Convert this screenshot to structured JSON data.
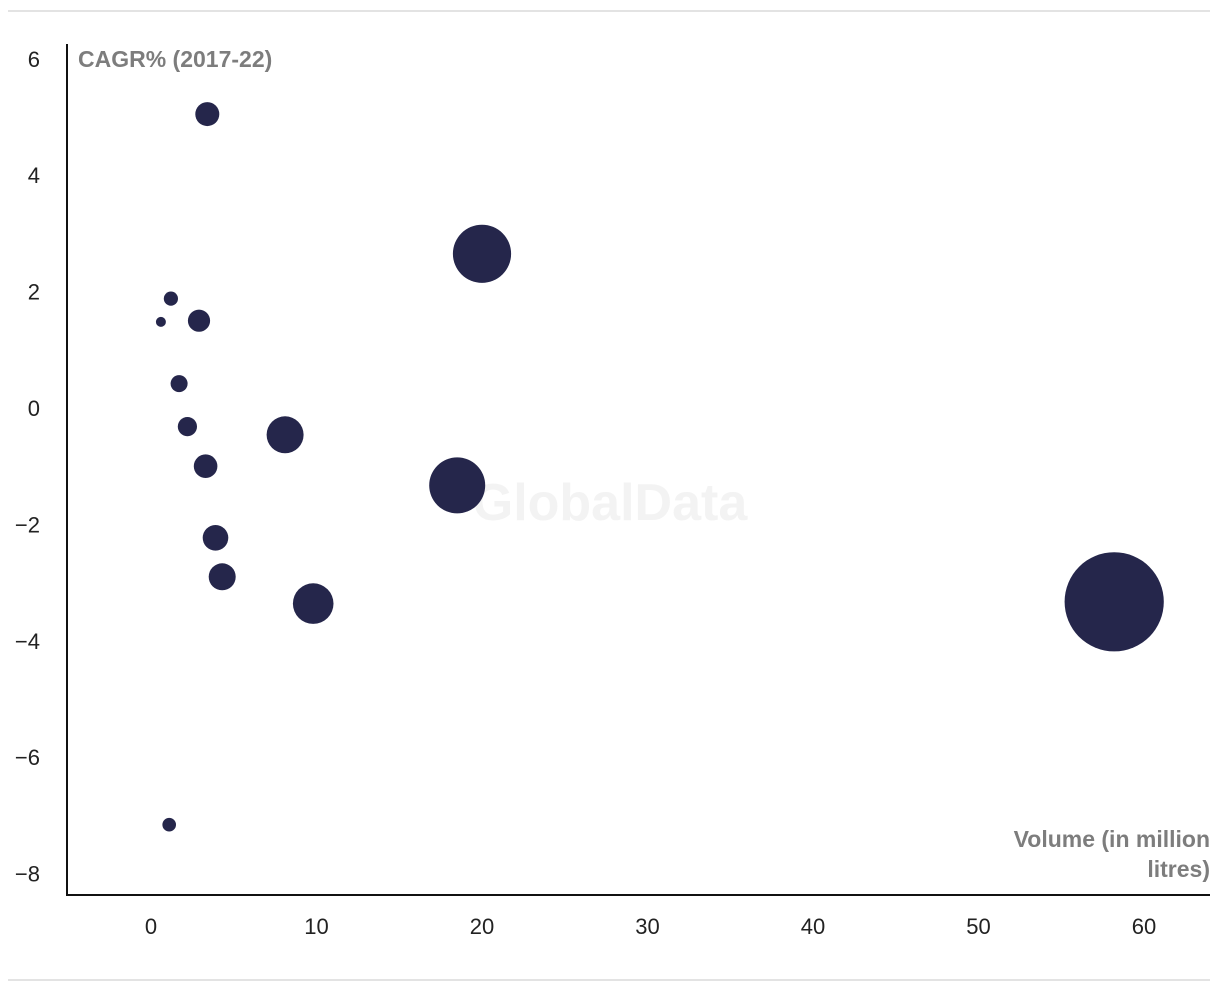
{
  "chart_data": {
    "type": "scatter",
    "subtype": "bubble",
    "ylabel": "CAGR% (2017-22)",
    "xlabel_lines": [
      "Volume (in million",
      "litres)"
    ],
    "watermark": "GlobalData",
    "xlim": [
      -5,
      64
    ],
    "ylim": [
      -8.3,
      6.3
    ],
    "x_ticks": [
      0,
      10,
      20,
      30,
      40,
      50,
      60
    ],
    "y_ticks": [
      6,
      4,
      2,
      0,
      -2,
      -4,
      -6,
      -8
    ],
    "y_tick_labels": [
      "6",
      "4",
      "2",
      "0",
      "−2",
      "−4",
      "−6",
      "−8"
    ],
    "grid": false,
    "bubble_color": "#25264b",
    "points": [
      {
        "x": 3.4,
        "y": 5.05,
        "size": 3.4
      },
      {
        "x": 20.0,
        "y": 2.65,
        "size": 20.0
      },
      {
        "x": 1.2,
        "y": 1.88,
        "size": 1.2
      },
      {
        "x": 0.6,
        "y": 1.48,
        "size": 0.6
      },
      {
        "x": 2.9,
        "y": 1.5,
        "size": 2.9
      },
      {
        "x": 1.7,
        "y": 0.42,
        "size": 1.7
      },
      {
        "x": 2.2,
        "y": -0.32,
        "size": 2.2
      },
      {
        "x": 8.1,
        "y": -0.46,
        "size": 8.1
      },
      {
        "x": 3.3,
        "y": -1.0,
        "size": 3.3
      },
      {
        "x": 18.5,
        "y": -1.33,
        "size": 18.5
      },
      {
        "x": 3.9,
        "y": -2.23,
        "size": 3.9
      },
      {
        "x": 4.3,
        "y": -2.9,
        "size": 4.3
      },
      {
        "x": 9.8,
        "y": -3.36,
        "size": 9.8
      },
      {
        "x": 58.2,
        "y": -3.33,
        "size": 58.2
      },
      {
        "x": 1.1,
        "y": -7.16,
        "size": 1.1
      }
    ]
  }
}
